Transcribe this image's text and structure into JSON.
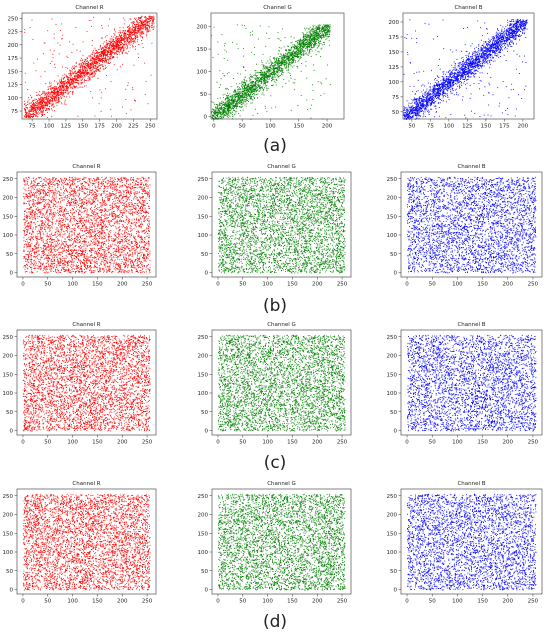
{
  "captions": [
    "(a)",
    "(b)",
    "(c)",
    "(d)"
  ],
  "colors": {
    "R": "#ff0000",
    "G": "#008000",
    "B": "#0000ff"
  },
  "chart_data": [
    {
      "type": "scatter",
      "row": "(a)",
      "title": "Channel R",
      "color": "#ff0000",
      "distribution": "diagonal-correlated",
      "n_points": 2600,
      "xlim": [
        60,
        260
      ],
      "ylim": [
        60,
        260
      ],
      "xticks": [
        75,
        100,
        125,
        150,
        175,
        200,
        225,
        250
      ],
      "yticks": [
        75,
        100,
        125,
        150,
        175,
        200,
        225,
        250
      ]
    },
    {
      "type": "scatter",
      "row": "(a)",
      "title": "Channel G",
      "color": "#008000",
      "distribution": "diagonal-correlated",
      "n_points": 2600,
      "xlim": [
        -5,
        230
      ],
      "ylim": [
        -5,
        230
      ],
      "xticks": [
        0,
        50,
        100,
        150,
        200
      ],
      "yticks": [
        0,
        50,
        100,
        150,
        200
      ]
    },
    {
      "type": "scatter",
      "row": "(a)",
      "title": "Channel B",
      "color": "#0000ff",
      "distribution": "diagonal-correlated",
      "n_points": 2600,
      "xlim": [
        38,
        215
      ],
      "ylim": [
        38,
        215
      ],
      "xticks": [
        50,
        75,
        100,
        125,
        150,
        175,
        200
      ],
      "yticks": [
        50,
        75,
        100,
        125,
        150,
        175,
        200
      ]
    },
    {
      "type": "scatter",
      "row": "(b)",
      "title": "Channel R",
      "color": "#ff0000",
      "distribution": "uniform",
      "n_points": 4200,
      "xlim": [
        -12,
        268
      ],
      "ylim": [
        -12,
        268
      ],
      "xticks": [
        0,
        50,
        100,
        150,
        200,
        250
      ],
      "yticks": [
        0,
        50,
        100,
        150,
        200,
        250
      ]
    },
    {
      "type": "scatter",
      "row": "(b)",
      "title": "Channel G",
      "color": "#008000",
      "distribution": "uniform",
      "n_points": 4200,
      "xlim": [
        -12,
        268
      ],
      "ylim": [
        -12,
        268
      ],
      "xticks": [
        0,
        50,
        100,
        150,
        200,
        250
      ],
      "yticks": [
        0,
        50,
        100,
        150,
        200,
        250
      ]
    },
    {
      "type": "scatter",
      "row": "(b)",
      "title": "Channel B",
      "color": "#0000ff",
      "distribution": "uniform",
      "n_points": 3600,
      "xlim": [
        -12,
        268
      ],
      "ylim": [
        -12,
        268
      ],
      "xticks": [
        0,
        50,
        100,
        150,
        200,
        250
      ],
      "yticks": [
        0,
        50,
        100,
        150,
        200,
        250
      ]
    },
    {
      "type": "scatter",
      "row": "(c)",
      "title": "Channel R",
      "color": "#ff0000",
      "distribution": "uniform",
      "n_points": 4200,
      "xlim": [
        -12,
        268
      ],
      "ylim": [
        -12,
        268
      ],
      "xticks": [
        0,
        50,
        100,
        150,
        200,
        250
      ],
      "yticks": [
        0,
        50,
        100,
        150,
        200,
        250
      ]
    },
    {
      "type": "scatter",
      "row": "(c)",
      "title": "Channel G",
      "color": "#008000",
      "distribution": "uniform",
      "n_points": 4200,
      "xlim": [
        -12,
        268
      ],
      "ylim": [
        -12,
        268
      ],
      "xticks": [
        0,
        50,
        100,
        150,
        200,
        250
      ],
      "yticks": [
        0,
        50,
        100,
        150,
        200,
        250
      ]
    },
    {
      "type": "scatter",
      "row": "(c)",
      "title": "Channel B",
      "color": "#0000ff",
      "distribution": "uniform",
      "n_points": 3600,
      "xlim": [
        -12,
        268
      ],
      "ylim": [
        -12,
        268
      ],
      "xticks": [
        0,
        50,
        100,
        150,
        200,
        250
      ],
      "yticks": [
        0,
        50,
        100,
        150,
        200,
        250
      ]
    },
    {
      "type": "scatter",
      "row": "(d)",
      "title": "Channel R",
      "color": "#ff0000",
      "distribution": "uniform",
      "n_points": 4200,
      "xlim": [
        -12,
        268
      ],
      "ylim": [
        -12,
        268
      ],
      "xticks": [
        0,
        50,
        100,
        150,
        200,
        250
      ],
      "yticks": [
        0,
        50,
        100,
        150,
        200,
        250
      ]
    },
    {
      "type": "scatter",
      "row": "(d)",
      "title": "Channel G",
      "color": "#008000",
      "distribution": "uniform",
      "n_points": 4200,
      "xlim": [
        -12,
        268
      ],
      "ylim": [
        -12,
        268
      ],
      "xticks": [
        0,
        50,
        100,
        150,
        200,
        250
      ],
      "yticks": [
        0,
        50,
        100,
        150,
        200,
        250
      ]
    },
    {
      "type": "scatter",
      "row": "(d)",
      "title": "Channel B",
      "color": "#0000ff",
      "distribution": "uniform",
      "n_points": 3600,
      "xlim": [
        -12,
        268
      ],
      "ylim": [
        -12,
        268
      ],
      "xticks": [
        0,
        50,
        100,
        150,
        200,
        250
      ],
      "yticks": [
        0,
        50,
        100,
        150,
        200,
        250
      ]
    }
  ]
}
